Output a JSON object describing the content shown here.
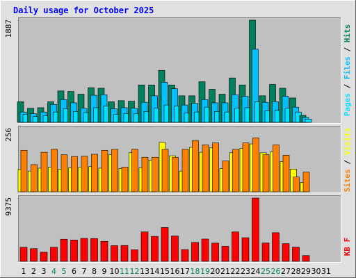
{
  "title": "Daily usage for October 2025",
  "colors": {
    "hits": "#00805c",
    "files": "#00c0ff",
    "pages": "#00e0ff",
    "sites": "#ff8000",
    "visits": "#ffff00",
    "kbytes": "#ff0000",
    "background": "#c0c0c0",
    "frame": "#e0e0e0",
    "title": "#0000ff",
    "day_weekday": "#000000",
    "day_weekend": "#00805c"
  },
  "legend": {
    "panel1": [
      "Pages",
      "Files",
      "Hits"
    ],
    "panel2": [
      "Sites",
      "Visits"
    ],
    "panel3": [
      "KB F"
    ]
  },
  "chart_data": [
    {
      "type": "bar",
      "panel": "hits-files-pages",
      "max_label": "1887",
      "ylim": [
        0,
        1887
      ],
      "categories": [
        "1",
        "2",
        "3",
        "4",
        "5",
        "6",
        "7",
        "8",
        "9",
        "10",
        "11",
        "12",
        "13",
        "14",
        "15",
        "16",
        "17",
        "18",
        "19",
        "20",
        "21",
        "22",
        "23",
        "24",
        "25",
        "26",
        "27",
        "28",
        "29",
        "30",
        "31"
      ],
      "series": [
        {
          "name": "Hits",
          "values": [
            380,
            260,
            270,
            380,
            580,
            570,
            520,
            640,
            630,
            380,
            400,
            390,
            690,
            690,
            960,
            690,
            490,
            490,
            750,
            610,
            520,
            820,
            690,
            1887,
            490,
            700,
            630,
            450,
            130,
            0,
            0
          ]
        },
        {
          "name": "Files",
          "values": [
            190,
            160,
            190,
            330,
            420,
            360,
            260,
            500,
            510,
            250,
            270,
            260,
            370,
            490,
            740,
            620,
            320,
            350,
            420,
            360,
            360,
            510,
            480,
            1350,
            370,
            380,
            480,
            280,
            90,
            0,
            0
          ]
        },
        {
          "name": "Pages",
          "values": [
            150,
            110,
            120,
            190,
            250,
            200,
            180,
            270,
            300,
            150,
            160,
            160,
            200,
            260,
            320,
            300,
            170,
            190,
            280,
            200,
            190,
            260,
            270,
            380,
            210,
            220,
            260,
            190,
            60,
            0,
            0
          ]
        }
      ]
    },
    {
      "type": "bar",
      "panel": "sites-visits",
      "max_label": "256",
      "ylim": [
        0,
        256
      ],
      "categories": [
        "1",
        "2",
        "3",
        "4",
        "5",
        "6",
        "7",
        "8",
        "9",
        "10",
        "11",
        "12",
        "13",
        "14",
        "15",
        "16",
        "17",
        "18",
        "19",
        "20",
        "21",
        "22",
        "23",
        "24",
        "25",
        "26",
        "27",
        "28",
        "29",
        "30",
        "31"
      ],
      "series": [
        {
          "name": "Sites",
          "values": [
            168,
            110,
            160,
            172,
            150,
            143,
            144,
            152,
            168,
            172,
            100,
            172,
            140,
            140,
            172,
            140,
            172,
            208,
            190,
            198,
            125,
            172,
            198,
            218,
            150,
            190,
            148,
            60,
            80,
            0,
            0
          ]
        },
        {
          "name": "Visits",
          "values": [
            92,
            84,
            96,
            100,
            92,
            98,
            100,
            102,
            96,
            150,
            94,
            158,
            98,
            128,
            200,
            146,
            84,
            180,
            160,
            178,
            94,
            158,
            176,
            194,
            158,
            162,
            122,
            92,
            38,
            0,
            0
          ]
        }
      ]
    },
    {
      "type": "bar",
      "panel": "kbytes",
      "max_label": "9375",
      "ylim": [
        0,
        9375
      ],
      "categories": [
        "1",
        "2",
        "3",
        "4",
        "5",
        "6",
        "7",
        "8",
        "9",
        "10",
        "11",
        "12",
        "13",
        "14",
        "15",
        "16",
        "17",
        "18",
        "19",
        "20",
        "21",
        "22",
        "23",
        "24",
        "25",
        "26",
        "27",
        "28",
        "29",
        "30",
        "31"
      ],
      "series": [
        {
          "name": "KBytes",
          "values": [
            2080,
            1880,
            1350,
            2080,
            3270,
            3160,
            3400,
            3380,
            2960,
            2320,
            2350,
            1710,
            4360,
            3700,
            5010,
            3760,
            1740,
            2800,
            3300,
            2700,
            2220,
            4360,
            3500,
            9375,
            2720,
            4240,
            2620,
            2100,
            850,
            0,
            0
          ]
        }
      ]
    }
  ]
}
